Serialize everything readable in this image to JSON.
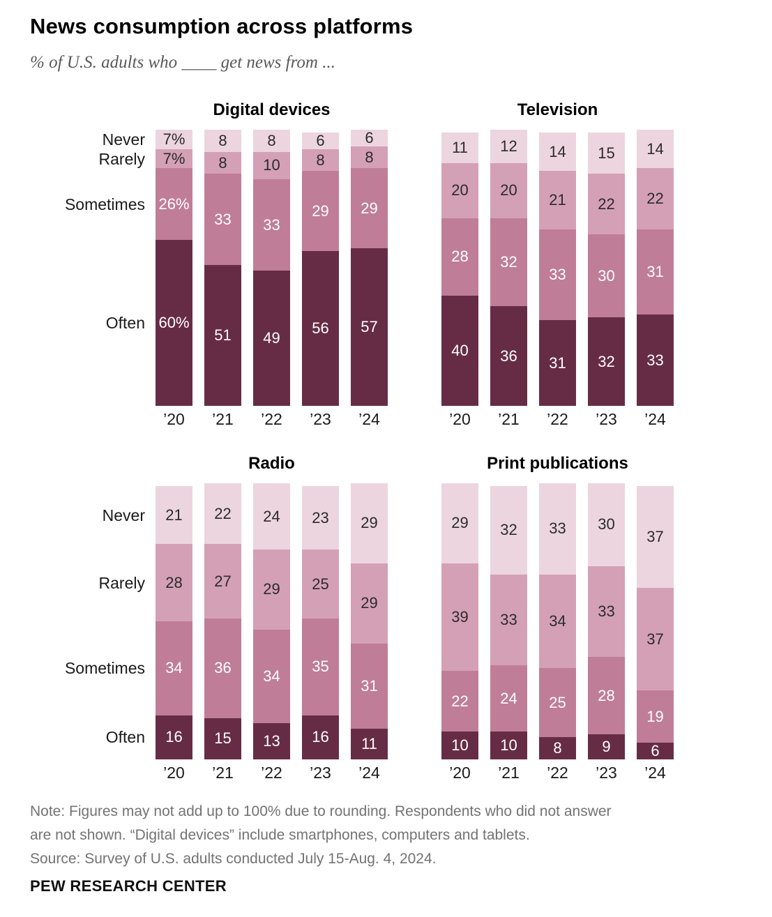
{
  "header": {
    "title": "News consumption across platforms",
    "subtitle": "% of U.S. adults who ____ get news from ..."
  },
  "palette": {
    "Never": "#ecd5df",
    "Rarely": "#d4a0b5",
    "Sometimes": "#c07d97",
    "Often": "#672c45"
  },
  "value_label_colors": {
    "Never": "#2b2b2b",
    "Rarely": "#2b2b2b",
    "Sometimes": "#ffffff",
    "Often": "#ffffff"
  },
  "chart_data": [
    {
      "type": "bar",
      "stacked": true,
      "stack_order": "top-to-bottom",
      "title": "Digital devices",
      "categories": [
        "’20",
        "’21",
        "’22",
        "’23",
        "’24"
      ],
      "series": [
        {
          "name": "Never",
          "values": [
            7,
            8,
            8,
            6,
            6
          ]
        },
        {
          "name": "Rarely",
          "values": [
            7,
            8,
            10,
            8,
            8
          ]
        },
        {
          "name": "Sometimes",
          "values": [
            26,
            33,
            33,
            29,
            29
          ]
        },
        {
          "name": "Often",
          "values": [
            60,
            51,
            49,
            56,
            57
          ]
        }
      ],
      "show_category_labels": true,
      "first_bar_value_suffix": "%",
      "ylim": [
        0,
        100
      ],
      "grid": false,
      "legend": "none"
    },
    {
      "type": "bar",
      "stacked": true,
      "stack_order": "top-to-bottom",
      "title": "Television",
      "categories": [
        "’20",
        "’21",
        "’22",
        "’23",
        "’24"
      ],
      "series": [
        {
          "name": "Never",
          "values": [
            11,
            12,
            14,
            15,
            14
          ]
        },
        {
          "name": "Rarely",
          "values": [
            20,
            20,
            21,
            22,
            22
          ]
        },
        {
          "name": "Sometimes",
          "values": [
            28,
            32,
            33,
            30,
            31
          ]
        },
        {
          "name": "Often",
          "values": [
            40,
            36,
            31,
            32,
            33
          ]
        }
      ],
      "show_category_labels": false,
      "first_bar_value_suffix": "",
      "ylim": [
        0,
        100
      ],
      "grid": false,
      "legend": "none"
    },
    {
      "type": "bar",
      "stacked": true,
      "stack_order": "top-to-bottom",
      "title": "Radio",
      "categories": [
        "’20",
        "’21",
        "’22",
        "’23",
        "’24"
      ],
      "series": [
        {
          "name": "Never",
          "values": [
            21,
            22,
            24,
            23,
            29
          ]
        },
        {
          "name": "Rarely",
          "values": [
            28,
            27,
            29,
            25,
            29
          ]
        },
        {
          "name": "Sometimes",
          "values": [
            34,
            36,
            34,
            35,
            31
          ]
        },
        {
          "name": "Often",
          "values": [
            16,
            15,
            13,
            16,
            11
          ]
        }
      ],
      "show_category_labels": true,
      "first_bar_value_suffix": "",
      "ylim": [
        0,
        100
      ],
      "grid": false,
      "legend": "none"
    },
    {
      "type": "bar",
      "stacked": true,
      "stack_order": "top-to-bottom",
      "title": "Print publications",
      "categories": [
        "’20",
        "’21",
        "’22",
        "’23",
        "’24"
      ],
      "series": [
        {
          "name": "Never",
          "values": [
            29,
            32,
            33,
            30,
            37
          ]
        },
        {
          "name": "Rarely",
          "values": [
            39,
            33,
            34,
            33,
            37
          ]
        },
        {
          "name": "Sometimes",
          "values": [
            22,
            24,
            25,
            28,
            19
          ]
        },
        {
          "name": "Often",
          "values": [
            10,
            10,
            8,
            9,
            6
          ]
        }
      ],
      "show_category_labels": false,
      "first_bar_value_suffix": "",
      "ylim": [
        0,
        100
      ],
      "grid": false,
      "legend": "none"
    }
  ],
  "footer": {
    "note_lines": [
      "Note: Figures may not add up to 100% due to rounding. Respondents who did not answer",
      "are not shown. “Digital devices” include smartphones, computers and tablets."
    ],
    "source": "Source: Survey of U.S. adults conducted July 15-Aug. 4, 2024.",
    "brand": "PEW RESEARCH CENTER"
  }
}
